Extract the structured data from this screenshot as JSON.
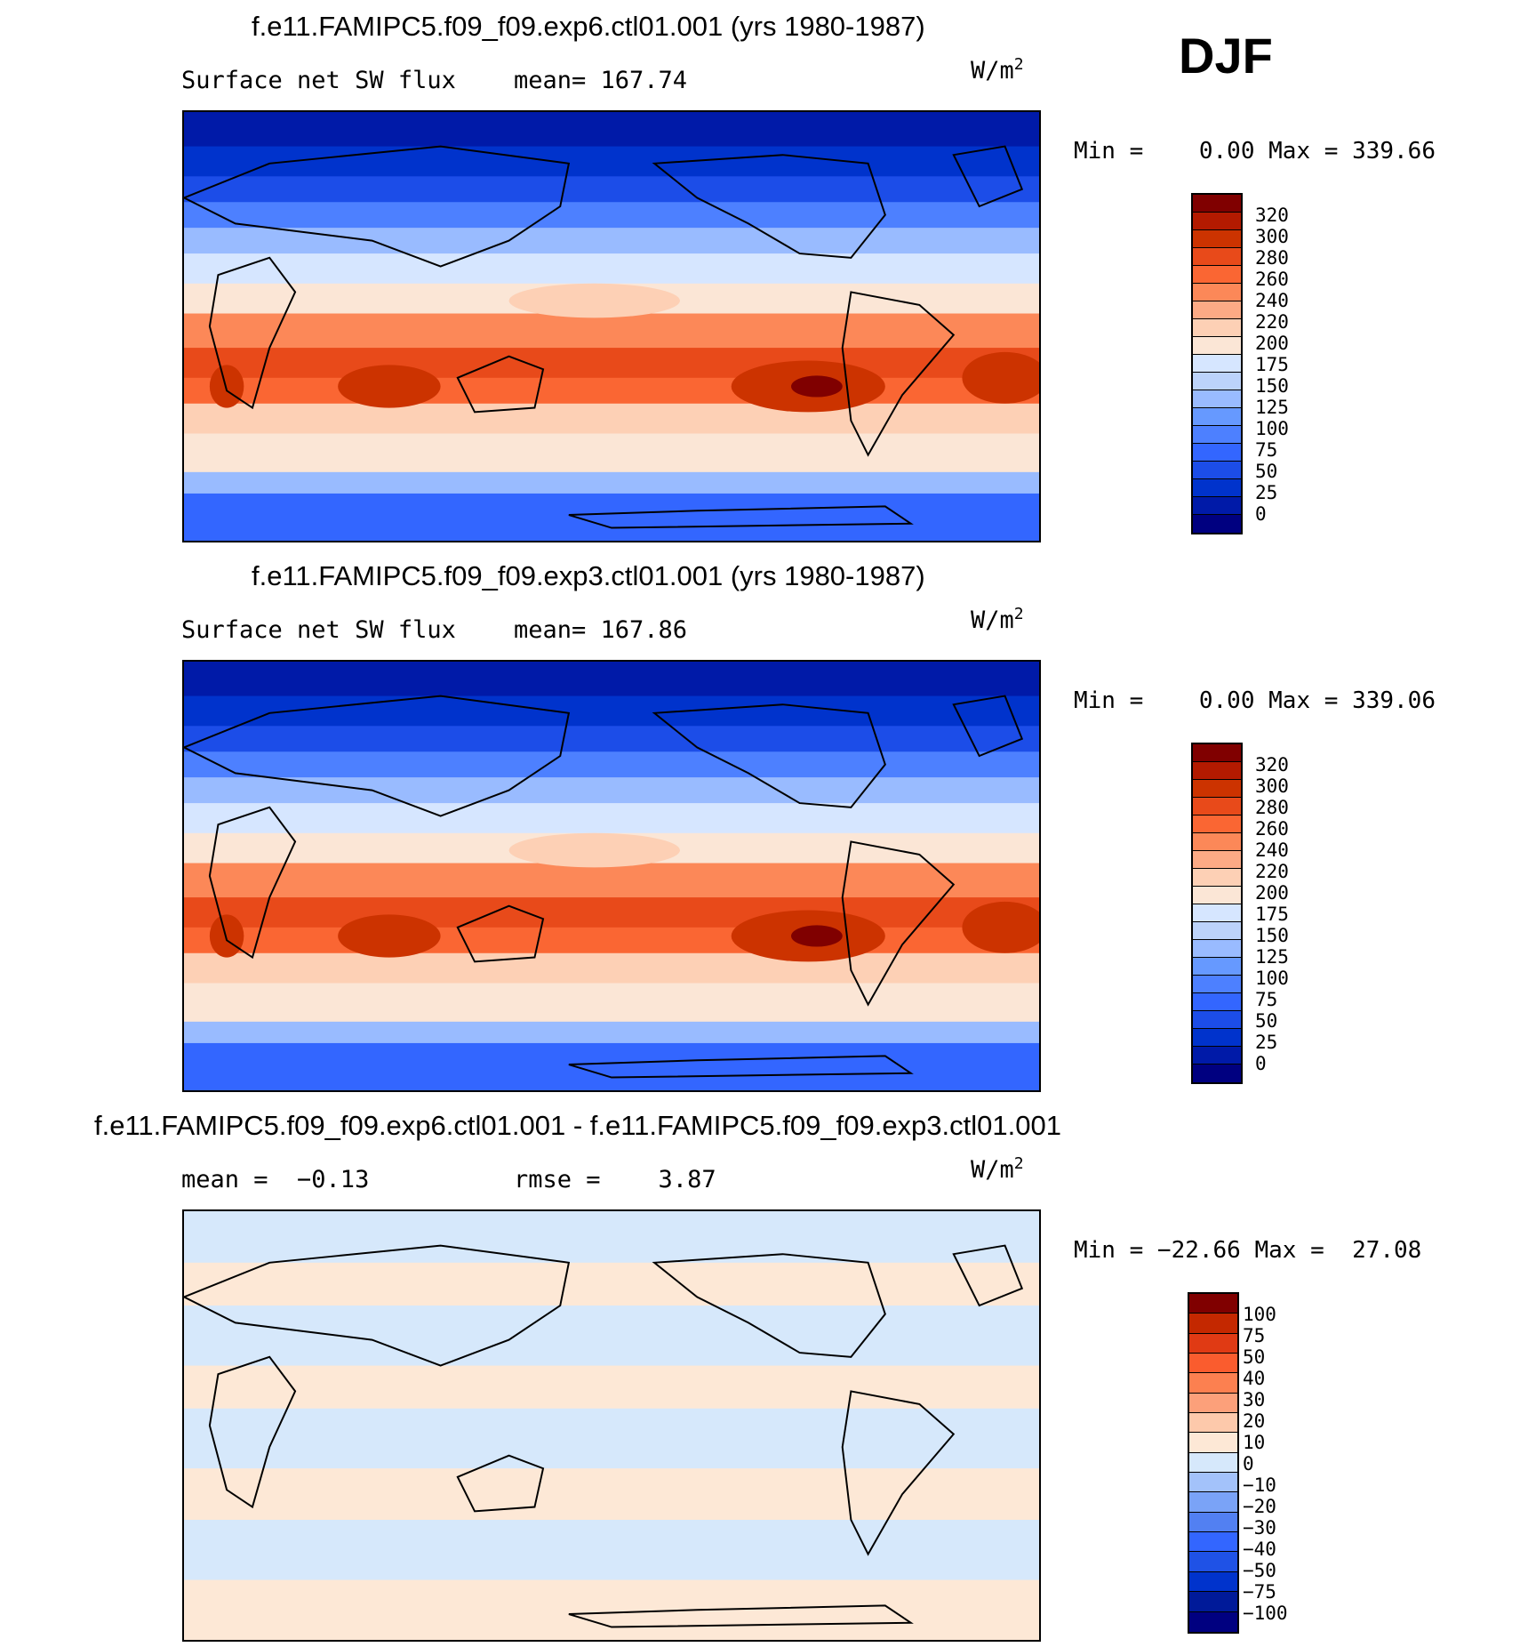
{
  "season": "DJF",
  "units_base": "W/m",
  "units_exp": "2",
  "colors": {
    "levels": [
      "#000080",
      "#001aa8",
      "#0033cc",
      "#1c4de8",
      "#3366ff",
      "#4d80ff",
      "#6699ff",
      "#99bbff",
      "#bcd3fa",
      "#d6e6ff",
      "#fbe6d6",
      "#fdd0b5",
      "#fcaa85",
      "#fc8858",
      "#fa6633",
      "#e84a1a",
      "#cc3300",
      "#b31a00",
      "#800000"
    ],
    "diff": [
      "#000080",
      "#001a99",
      "#0033cc",
      "#1f52e6",
      "#3366ff",
      "#5280f2",
      "#7aa3f7",
      "#a3c2fa",
      "#d6e8fb",
      "#fde8d6",
      "#fdc9ab",
      "#fca07a",
      "#fc8050",
      "#fa5c2e",
      "#e03a14",
      "#c42800",
      "#800000"
    ]
  },
  "panels": [
    {
      "title": "f.e11.FAMIPC5.f09_f09.exp6.ctl01.001 (yrs 1980-1987)",
      "left_label": "Surface net SW flux",
      "right_label": "mean= 167.74",
      "minmax": "Min =    0.00 Max = 339.66",
      "colorbar": [
        "320",
        "300",
        "280",
        "260",
        "240",
        "220",
        "200",
        "175",
        "150",
        "125",
        "100",
        "75",
        "50",
        "25",
        "0"
      ]
    },
    {
      "title": "f.e11.FAMIPC5.f09_f09.exp3.ctl01.001 (yrs 1980-1987)",
      "left_label": "Surface net SW flux",
      "right_label": "mean= 167.86",
      "minmax": "Min =    0.00 Max = 339.06",
      "colorbar": [
        "320",
        "300",
        "280",
        "260",
        "240",
        "220",
        "200",
        "175",
        "150",
        "125",
        "100",
        "75",
        "50",
        "25",
        "0"
      ]
    },
    {
      "title": "f.e11.FAMIPC5.f09_f09.exp6.ctl01.001 - f.e11.FAMIPC5.f09_f09.exp3.ctl01.001",
      "left_label": "mean =  −0.13",
      "right_label": "rmse =    3.87",
      "minmax": "Min = −22.66 Max =  27.08",
      "colorbar": [
        "100",
        "75",
        "50",
        "40",
        "30",
        "20",
        "10",
        "0",
        "−10",
        "−20",
        "−30",
        "−40",
        "−50",
        "−75",
        "−100"
      ]
    }
  ]
}
